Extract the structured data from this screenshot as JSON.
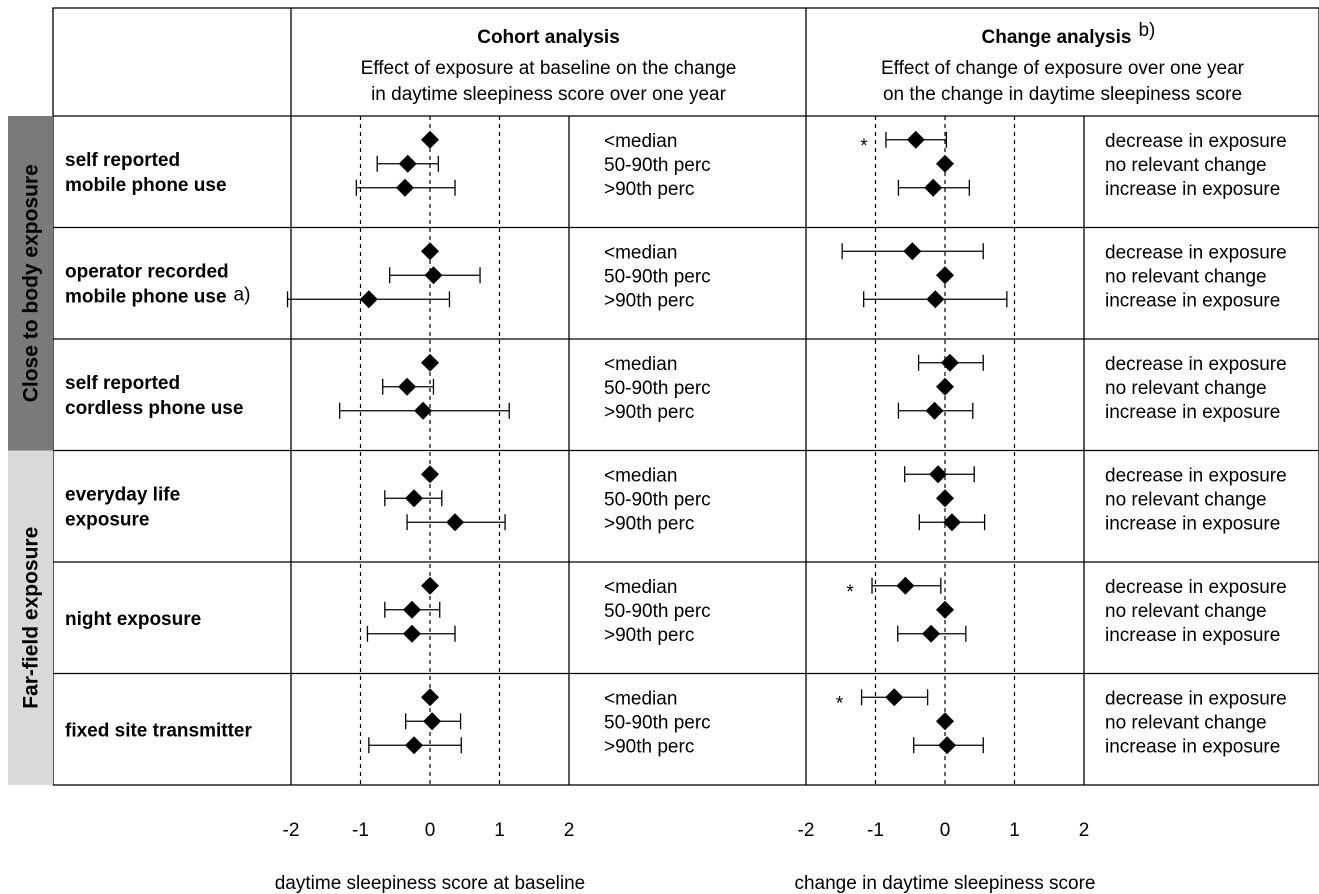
{
  "chart_data": {
    "type": "forest",
    "columns": [
      {
        "title": "Cohort analysis",
        "title_sup": "",
        "subtitle": [
          "Effect of exposure at baseline on the change",
          "in daytime sleepiness score over one year"
        ],
        "xlabel": "daytime sleepiness score at baseline",
        "xlim": [
          -2,
          2
        ],
        "ticks": [
          "-2",
          "-1",
          "0",
          "1",
          "2"
        ],
        "reference_lines": [
          -1,
          0,
          1
        ],
        "level_labels": [
          "<median",
          "50-90th perc",
          ">90th perc"
        ]
      },
      {
        "title": "Change analysis",
        "title_sup": "b)",
        "subtitle": [
          "Effect of change of exposure over one year",
          "on the change in daytime sleepiness score"
        ],
        "xlabel": "change in daytime sleepiness score",
        "xlim": [
          -2,
          2
        ],
        "ticks": [
          "-2",
          "-1",
          "0",
          "1",
          "2"
        ],
        "reference_lines": [
          -1,
          0,
          1
        ],
        "level_labels": [
          "decrease in exposure",
          "no relevant change",
          "increase in exposure"
        ]
      }
    ],
    "groups": [
      {
        "label": "Close to body exposure",
        "rows": [
          0,
          1,
          2
        ],
        "color": "#7a7a7a"
      },
      {
        "label": "Far-field exposure",
        "rows": [
          3,
          4,
          5
        ],
        "color": "#d9d9d9"
      }
    ],
    "rows": [
      {
        "label": [
          "self reported",
          "mobile phone use"
        ],
        "label_sup": "",
        "cohort": [
          {
            "est": 0,
            "lo": null,
            "hi": null
          },
          {
            "est": -0.32,
            "lo": -0.76,
            "hi": 0.12
          },
          {
            "est": -0.36,
            "lo": -1.06,
            "hi": 0.36
          }
        ],
        "change": [
          {
            "est": -0.42,
            "lo": -0.85,
            "hi": 0.02,
            "star": true
          },
          {
            "est": 0,
            "lo": null,
            "hi": null
          },
          {
            "est": -0.17,
            "lo": -0.67,
            "hi": 0.35
          }
        ]
      },
      {
        "label": [
          "operator recorded",
          "mobile phone use"
        ],
        "label_sup": "a)",
        "cohort": [
          {
            "est": 0,
            "lo": null,
            "hi": null
          },
          {
            "est": 0.05,
            "lo": -0.58,
            "hi": 0.72
          },
          {
            "est": -0.88,
            "lo": -2.05,
            "hi": 0.28
          }
        ],
        "change": [
          {
            "est": -0.47,
            "lo": -1.48,
            "hi": 0.55,
            "star": false
          },
          {
            "est": 0,
            "lo": null,
            "hi": null
          },
          {
            "est": -0.14,
            "lo": -1.17,
            "hi": 0.89
          }
        ]
      },
      {
        "label": [
          "self reported",
          "cordless phone use"
        ],
        "label_sup": "",
        "cohort": [
          {
            "est": 0,
            "lo": null,
            "hi": null
          },
          {
            "est": -0.33,
            "lo": -0.68,
            "hi": 0.05
          },
          {
            "est": -0.1,
            "lo": -1.3,
            "hi": 1.14
          }
        ],
        "change": [
          {
            "est": 0.07,
            "lo": -0.38,
            "hi": 0.55,
            "star": false
          },
          {
            "est": 0,
            "lo": null,
            "hi": null
          },
          {
            "est": -0.15,
            "lo": -0.67,
            "hi": 0.4
          }
        ]
      },
      {
        "label": [
          "everyday life",
          "exposure"
        ],
        "label_sup": "",
        "cohort": [
          {
            "est": 0,
            "lo": null,
            "hi": null
          },
          {
            "est": -0.23,
            "lo": -0.65,
            "hi": 0.17
          },
          {
            "est": 0.36,
            "lo": -0.33,
            "hi": 1.08
          }
        ],
        "change": [
          {
            "est": -0.1,
            "lo": -0.58,
            "hi": 0.42,
            "star": false
          },
          {
            "est": 0,
            "lo": null,
            "hi": null
          },
          {
            "est": 0.1,
            "lo": -0.37,
            "hi": 0.57
          }
        ]
      },
      {
        "label": [
          "night exposure"
        ],
        "label_sup": "",
        "cohort": [
          {
            "est": 0,
            "lo": null,
            "hi": null
          },
          {
            "est": -0.26,
            "lo": -0.65,
            "hi": 0.14
          },
          {
            "est": -0.26,
            "lo": -0.9,
            "hi": 0.36
          }
        ],
        "change": [
          {
            "est": -0.57,
            "lo": -1.05,
            "hi": -0.06,
            "star": true
          },
          {
            "est": 0,
            "lo": null,
            "hi": null
          },
          {
            "est": -0.2,
            "lo": -0.68,
            "hi": 0.3
          }
        ]
      },
      {
        "label": [
          "fixed site transmitter"
        ],
        "label_sup": "",
        "cohort": [
          {
            "est": 0,
            "lo": null,
            "hi": null
          },
          {
            "est": 0.03,
            "lo": -0.35,
            "hi": 0.44
          },
          {
            "est": -0.23,
            "lo": -0.88,
            "hi": 0.45
          }
        ],
        "change": [
          {
            "est": -0.73,
            "lo": -1.2,
            "hi": -0.25,
            "star": true
          },
          {
            "est": 0,
            "lo": null,
            "hi": null
          },
          {
            "est": 0.03,
            "lo": -0.45,
            "hi": 0.55
          }
        ]
      }
    ],
    "star_label": "*"
  }
}
